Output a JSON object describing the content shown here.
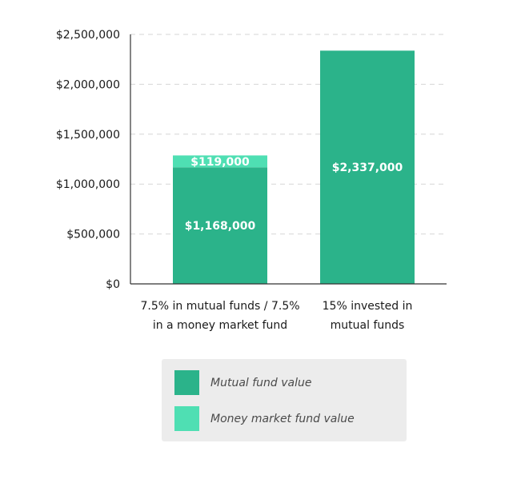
{
  "chart_data": {
    "type": "bar",
    "stacked": true,
    "categories": [
      [
        "7.5% in mutual funds / 7.5%",
        "in a money market fund"
      ],
      [
        "15% invested in",
        "mutual funds"
      ]
    ],
    "series": [
      {
        "name": "Mutual fund value",
        "values": [
          1168000,
          2337000
        ],
        "labels": [
          "$1,168,000",
          "$2,337,000"
        ],
        "color": "#2bb38a"
      },
      {
        "name": "Money market fund value",
        "values": [
          119000,
          0
        ],
        "labels": [
          "$119,000",
          ""
        ],
        "color": "#4fdfb3"
      }
    ],
    "yticks": [
      0,
      500000,
      1000000,
      1500000,
      2000000,
      2500000
    ],
    "ytick_labels": [
      "$0",
      "$500,000",
      "$1,000,000",
      "$1,500,000",
      "$2,000,000",
      "$2,500,000"
    ],
    "ylim": [
      0,
      2500000
    ],
    "grid": true,
    "legend_position": "bottom"
  }
}
